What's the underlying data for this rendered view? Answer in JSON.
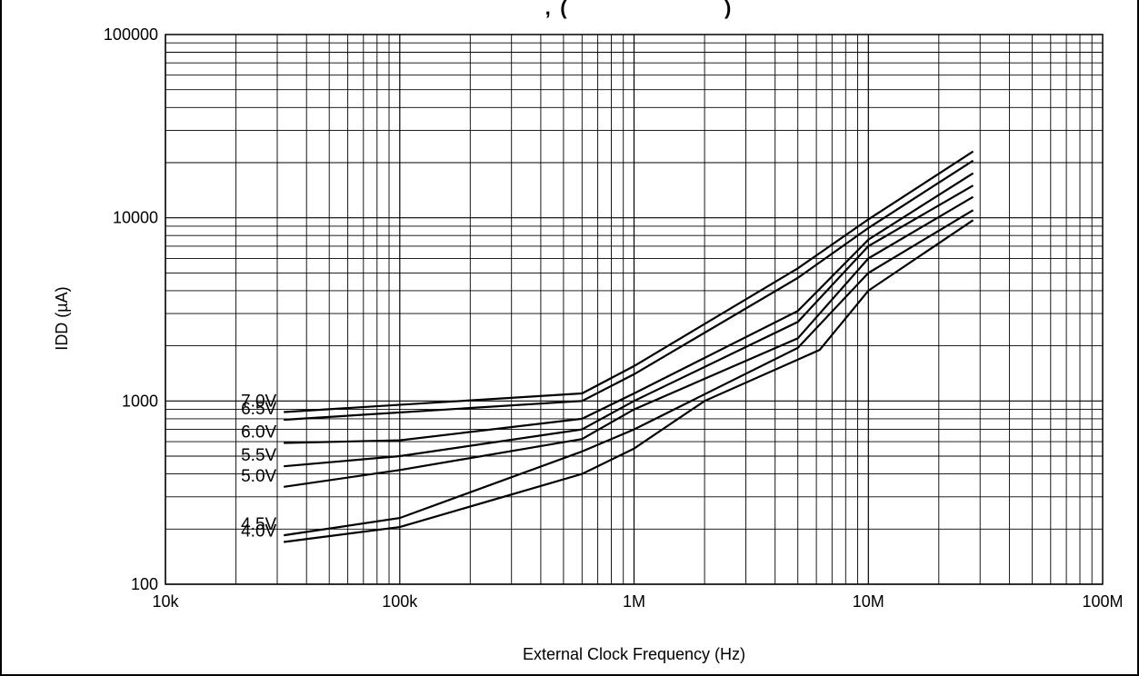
{
  "chart_data": {
    "type": "line",
    "title": "",
    "title_fragment_top": ",  (                                       )",
    "xlabel": "External Clock Frequency (Hz)",
    "ylabel": "IDD (µA)",
    "x_scale": "log",
    "y_scale": "log",
    "xlim": [
      10000,
      100000000
    ],
    "ylim": [
      100,
      100000
    ],
    "grid": true,
    "x_ticks": [
      {
        "value": 10000,
        "label": "10k"
      },
      {
        "value": 100000,
        "label": "100k"
      },
      {
        "value": 1000000,
        "label": "1M"
      },
      {
        "value": 10000000,
        "label": "10M"
      },
      {
        "value": 100000000,
        "label": "100M"
      }
    ],
    "y_ticks": [
      {
        "value": 100,
        "label": "100"
      },
      {
        "value": 1000,
        "label": "1000"
      },
      {
        "value": 10000,
        "label": "10000"
      },
      {
        "value": 100000,
        "label": "100000"
      }
    ],
    "series": [
      {
        "name": "7.0V",
        "x": [
          32000,
          600000,
          1000000,
          5000000,
          10000000,
          28000000
        ],
        "y": [
          870,
          1100,
          1550,
          5300,
          9800,
          23000
        ]
      },
      {
        "name": "6.5V",
        "x": [
          32000,
          600000,
          1000000,
          5000000,
          10000000,
          28000000
        ],
        "y": [
          790,
          1000,
          1400,
          4700,
          8800,
          20500
        ]
      },
      {
        "name": "6.0V",
        "x": [
          32000,
          100000,
          600000,
          1000000,
          5000000,
          10000000,
          28000000
        ],
        "y": [
          590,
          610,
          800,
          1100,
          3100,
          7600,
          17500
        ]
      },
      {
        "name": "5.5V",
        "x": [
          32000,
          100000,
          600000,
          1000000,
          5000000,
          10000000,
          28000000
        ],
        "y": [
          440,
          500,
          700,
          1000,
          2700,
          7000,
          15000
        ]
      },
      {
        "name": "5.0V",
        "x": [
          32000,
          100000,
          600000,
          1000000,
          5000000,
          10000000,
          28000000
        ],
        "y": [
          340,
          420,
          620,
          900,
          2200,
          6000,
          13000
        ]
      },
      {
        "name": "4.5V",
        "x": [
          32000,
          100000,
          600000,
          1000000,
          5000000,
          10000000,
          28000000
        ],
        "y": [
          185,
          230,
          530,
          700,
          1950,
          5000,
          11000
        ]
      },
      {
        "name": "4.0V",
        "x": [
          32000,
          100000,
          600000,
          1000000,
          2000000,
          6200000,
          10000000,
          28000000
        ],
        "y": [
          170,
          205,
          400,
          550,
          1000,
          1900,
          4000,
          9700
        ]
      }
    ]
  }
}
